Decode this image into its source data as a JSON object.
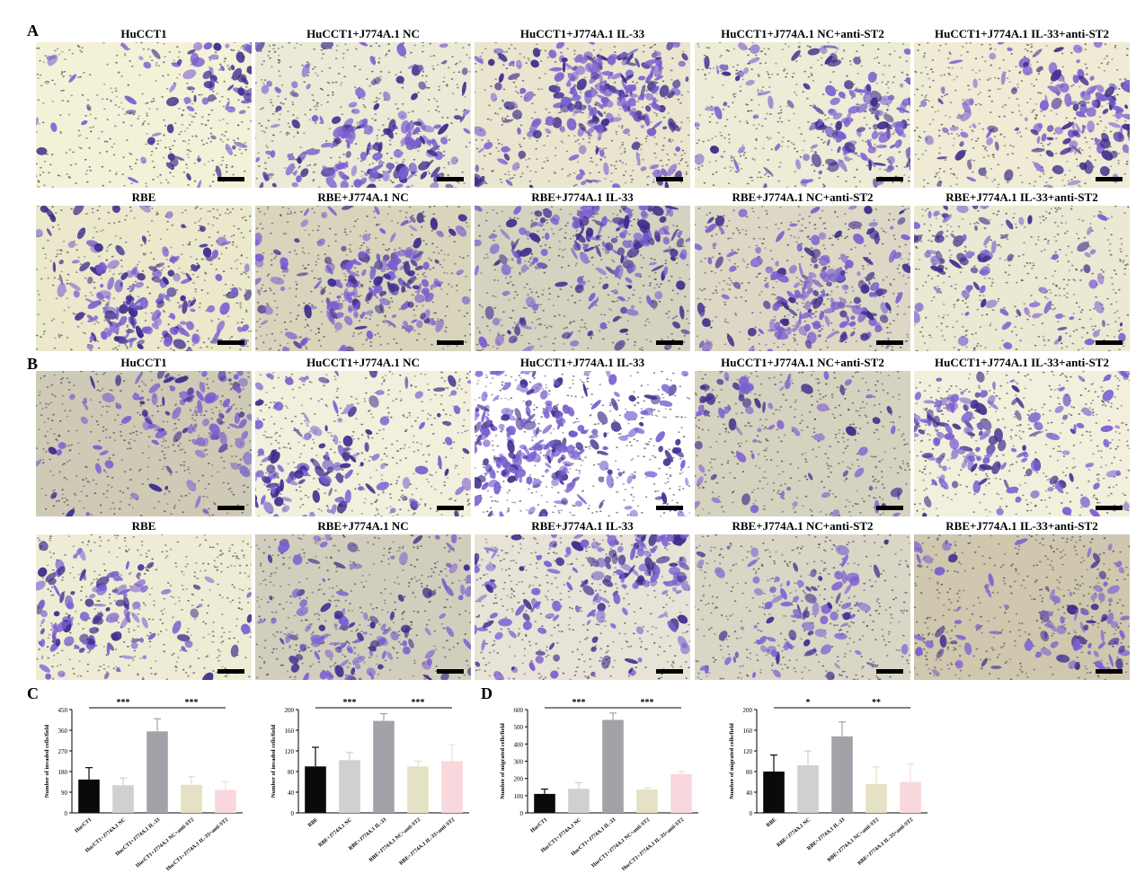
{
  "panels": {
    "A": "A",
    "B": "B",
    "C": "C",
    "D": "D"
  },
  "colors": {
    "bar_black": "#0a0a0a",
    "bar_lightgray": "#cfd0d0",
    "bar_gray": "#a3a2a9",
    "bar_khaki": "#e5e1c4",
    "bar_pink": "#f8d8dc",
    "stain_purple": "#6a4fc1",
    "membrane_cream": "#f2efd4"
  },
  "row_titles": {
    "hucct1": [
      "HuCCT1",
      "HuCCT1+J774A.1 NC",
      "HuCCT1+J774A.1 IL-33",
      "HuCCT1+J774A.1 NC+anti-ST2",
      "HuCCT1+J774A.1 IL-33+anti-ST2"
    ],
    "rbe": [
      "RBE",
      "RBE+J774A.1 NC",
      "RBE+J774A.1 IL-33",
      "RBE+J774A.1 NC+anti-ST2",
      "RBE+J774A.1 IL-33+anti-ST2"
    ]
  },
  "chart_data": [
    {
      "type": "bar",
      "panel": "C",
      "ylabel": "Number of invaded cells/field",
      "ylim": [
        0,
        450
      ],
      "yticks": [
        "0",
        "90",
        "180",
        "270",
        "360",
        "450"
      ],
      "categories": [
        "HucCT1",
        "HucCT1+J774A.1 NC",
        "HucCT1+J774A.1 IL-33",
        "HucCT1+J774A.1 NC+anti-ST2",
        "HucCT1+J774A.1 IL-33+anti-ST2"
      ],
      "values": [
        145,
        120,
        355,
        122,
        100
      ],
      "errors": [
        52,
        32,
        55,
        36,
        35
      ],
      "colors": [
        "#0a0a0a",
        "#cfd0d0",
        "#a3a2a9",
        "#e5e1c4",
        "#f8d8dc"
      ],
      "significance": [
        {
          "from": 0,
          "to": 2,
          "label": "***"
        },
        {
          "from": 2,
          "to": 4,
          "label": "***"
        }
      ]
    },
    {
      "type": "bar",
      "panel": "C",
      "ylabel": "Number of invaded cells/field",
      "ylim": [
        0,
        200
      ],
      "yticks": [
        "0",
        "40",
        "80",
        "120",
        "160",
        "200"
      ],
      "categories": [
        "RBE",
        "RBE+J774A.1 NC",
        "RBE+J774A.1 IL-33",
        "RBE+J774A.1 NC+anti-ST2",
        "RBE+J774A.1 IL-33+anti-ST2"
      ],
      "values": [
        90,
        102,
        178,
        90,
        100
      ],
      "errors": [
        37,
        15,
        14,
        10,
        32
      ],
      "colors": [
        "#0a0a0a",
        "#cfd0d0",
        "#a3a2a9",
        "#e5e1c4",
        "#f8d8dc"
      ],
      "significance": [
        {
          "from": 0,
          "to": 2,
          "label": "***"
        },
        {
          "from": 2,
          "to": 4,
          "label": "***"
        }
      ]
    },
    {
      "type": "bar",
      "panel": "D",
      "ylabel": "Number of migrated cells/field",
      "ylim": [
        0,
        600
      ],
      "yticks": [
        "0",
        "100",
        "200",
        "300",
        "400",
        "500",
        "600"
      ],
      "categories": [
        "HucCT1",
        "HucCT1+J774A.1 NC",
        "HucCT1+J774A.1 IL-33",
        "HucCT1+J774A.1 NC+anti-ST2",
        "HucCT1+J774A.1 IL-33+anti-ST2"
      ],
      "values": [
        110,
        140,
        540,
        135,
        225
      ],
      "errors": [
        28,
        35,
        40,
        10,
        15
      ],
      "colors": [
        "#0a0a0a",
        "#cfd0d0",
        "#a3a2a9",
        "#e5e1c4",
        "#f8d8dc"
      ],
      "significance": [
        {
          "from": 0,
          "to": 2,
          "label": "***"
        },
        {
          "from": 2,
          "to": 4,
          "label": "***"
        }
      ]
    },
    {
      "type": "bar",
      "panel": "D",
      "ylabel": "Number of migrated cells/field",
      "ylim": [
        0,
        200
      ],
      "yticks": [
        "0",
        "40",
        "80",
        "120",
        "160",
        "200"
      ],
      "categories": [
        "RBE",
        "RBE+J774A.1 NC",
        "RBE+J774A.1 IL-33",
        "RBE+J774A.1 NC+anti-ST2",
        "RBE+J774A.1 IL-33+anti-ST2"
      ],
      "values": [
        80,
        92,
        148,
        56,
        60
      ],
      "errors": [
        32,
        28,
        28,
        33,
        35
      ],
      "colors": [
        "#0a0a0a",
        "#cfd0d0",
        "#a3a2a9",
        "#e5e1c4",
        "#f8d8dc"
      ],
      "significance": [
        {
          "from": 0,
          "to": 2,
          "label": "*"
        },
        {
          "from": 2,
          "to": 4,
          "label": "**"
        }
      ]
    }
  ]
}
